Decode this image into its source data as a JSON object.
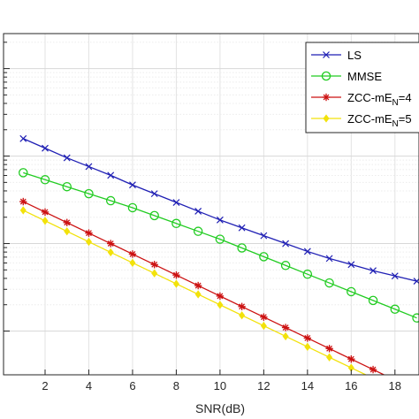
{
  "chart_data": {
    "type": "line",
    "title": "",
    "xlabel": "SNR(dB)",
    "ylabel": "",
    "x": [
      1,
      2,
      3,
      4,
      5,
      6,
      7,
      8,
      9,
      10,
      11,
      12,
      13,
      14,
      15,
      16,
      17,
      18,
      19
    ],
    "xticks": [
      2,
      4,
      6,
      8,
      10,
      12,
      14,
      16,
      18
    ],
    "xlim": [
      0.1,
      19.1
    ],
    "y_scale": "log",
    "ylim_log10": [
      -4.9,
      -1.0
    ],
    "ygrid_decades_log10": [
      -1.4,
      -2.4,
      -3.4,
      -4.4
    ],
    "grid": true,
    "legend_position": "top-right",
    "series": [
      {
        "name": "LS",
        "marker": "x",
        "color": "#1f1fb4",
        "log10_values": [
          -2.2,
          -2.31,
          -2.42,
          -2.52,
          -2.62,
          -2.73,
          -2.83,
          -2.93,
          -3.03,
          -3.13,
          -3.22,
          -3.31,
          -3.4,
          -3.49,
          -3.57,
          -3.64,
          -3.71,
          -3.77,
          -3.83
        ]
      },
      {
        "name": "MMSE",
        "marker": "circle",
        "color": "#22cc22",
        "log10_values": [
          -2.59,
          -2.67,
          -2.75,
          -2.83,
          -2.91,
          -2.99,
          -3.08,
          -3.17,
          -3.26,
          -3.35,
          -3.45,
          -3.55,
          -3.65,
          -3.75,
          -3.85,
          -3.95,
          -4.05,
          -4.15,
          -4.25
        ]
      },
      {
        "name": "ZCC-mE",
        "name_subscript": "N",
        "name_suffix": "=4",
        "marker": "star",
        "color": "#cc1111",
        "log10_values": [
          -2.92,
          -3.04,
          -3.16,
          -3.28,
          -3.4,
          -3.52,
          -3.64,
          -3.76,
          -3.88,
          -4.0,
          -4.12,
          -4.24,
          -4.36,
          -4.48,
          -4.6,
          -4.72,
          -4.84,
          -4.96,
          -5.08
        ]
      },
      {
        "name": "ZCC-mE",
        "name_subscript": "N",
        "name_suffix": "=5",
        "marker": "diamond",
        "color": "#f2e20a",
        "log10_values": [
          -3.02,
          -3.14,
          -3.26,
          -3.38,
          -3.5,
          -3.62,
          -3.74,
          -3.86,
          -3.98,
          -4.1,
          -4.22,
          -4.34,
          -4.46,
          -4.58,
          -4.7,
          -4.82,
          -4.94,
          -5.06,
          -5.18
        ]
      }
    ]
  }
}
